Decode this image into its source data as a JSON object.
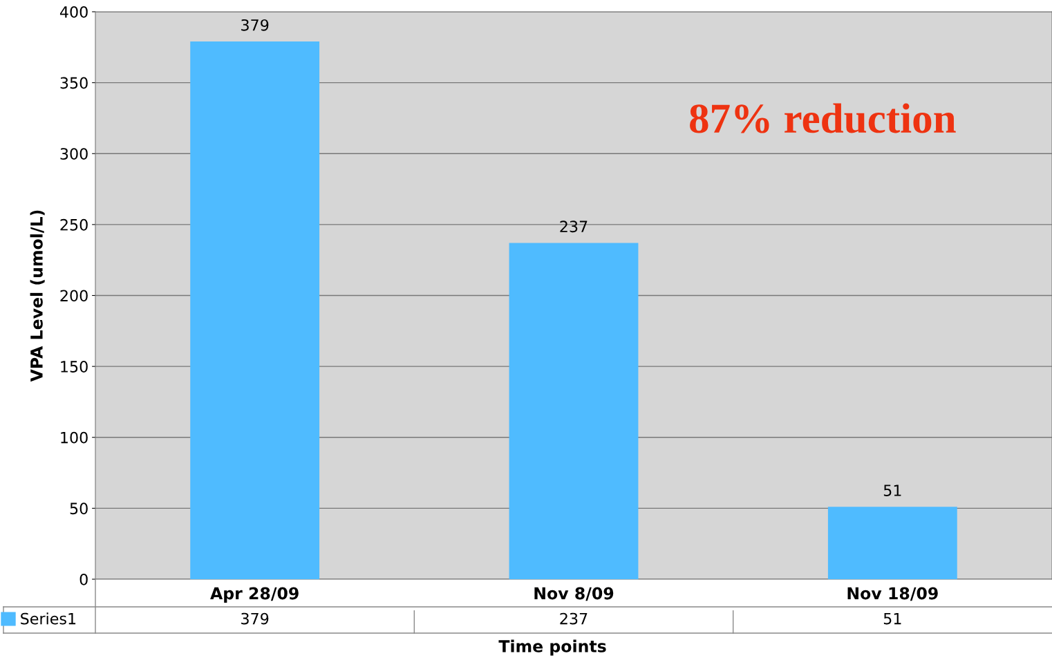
{
  "chart_data": {
    "type": "bar",
    "xlabel": "Time points",
    "ylabel": "VPA Level (umol/L)",
    "categories": [
      "Apr 28/09",
      "Nov 8/09",
      "Nov 18/09"
    ],
    "series": [
      {
        "name": "Series1",
        "color": "#4fbbff",
        "values": [
          379,
          237,
          51
        ],
        "value_labels": [
          "379",
          "237",
          "51"
        ]
      }
    ],
    "ylim": [
      0,
      400
    ],
    "yticks": [
      0,
      50,
      100,
      150,
      200,
      250,
      300,
      350,
      400
    ],
    "grid": "y",
    "data_labels": true,
    "legend": "bottom left",
    "annotations": [
      "87% reduction",
      "379",
      "237",
      "51"
    ]
  }
}
